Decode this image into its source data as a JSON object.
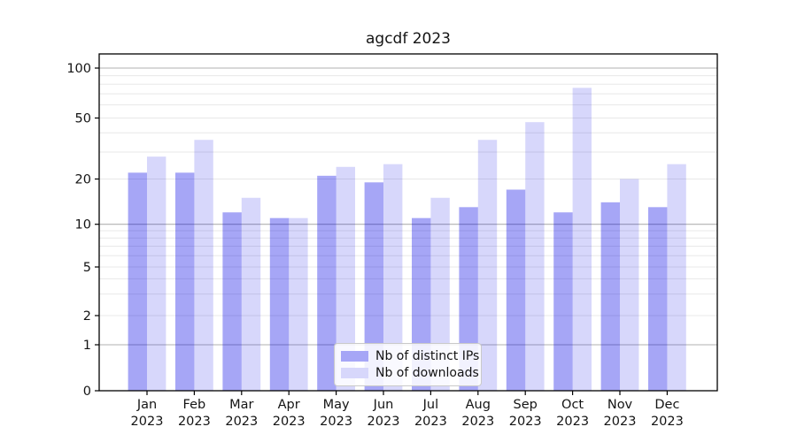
{
  "chart_data": {
    "type": "bar",
    "title": "agcdf 2023",
    "categories": [
      "Jan 2023",
      "Feb 2023",
      "Mar 2023",
      "Apr 2023",
      "May 2023",
      "Jun 2023",
      "Jul 2023",
      "Aug 2023",
      "Sep 2023",
      "Oct 2023",
      "Nov 2023",
      "Dec 2023"
    ],
    "x_tick_line1": [
      "Jan",
      "Feb",
      "Mar",
      "Apr",
      "May",
      "Jun",
      "Jul",
      "Aug",
      "Sep",
      "Oct",
      "Nov",
      "Dec"
    ],
    "x_tick_line2": [
      "2023",
      "2023",
      "2023",
      "2023",
      "2023",
      "2023",
      "2023",
      "2023",
      "2023",
      "2023",
      "2023",
      "2023"
    ],
    "series": [
      {
        "name": "Nb of distinct IPs",
        "color": "#a6a6f6",
        "rgba": "rgba(0,0,230,0.35)",
        "values": [
          22,
          22,
          12,
          11,
          21,
          19,
          11,
          13,
          17,
          12,
          14,
          13
        ]
      },
      {
        "name": "Nb of downloads",
        "color": "#d7d7fb",
        "rgba": "rgba(0,0,230,0.155)",
        "values": [
          28,
          36,
          15,
          11,
          24,
          25,
          15,
          36,
          47,
          76,
          20,
          25
        ]
      }
    ],
    "y_ticks": [
      0,
      1,
      2,
      5,
      10,
      20,
      50,
      100
    ],
    "y_minor_gridlines": [
      2,
      3,
      4,
      5,
      6,
      7,
      8,
      9,
      20,
      30,
      40,
      50,
      60,
      70,
      80,
      90
    ],
    "y_major_gridlines": [
      1,
      10,
      100
    ],
    "yscale": "log-like",
    "ylim": [
      0,
      130
    ],
    "grid": true,
    "legend_position": "lower center",
    "colors": {
      "major_grid": "#b0b0b0",
      "minor_grid": "#e8e8e8",
      "spine": "#000000",
      "tick_label": "#141414"
    }
  }
}
